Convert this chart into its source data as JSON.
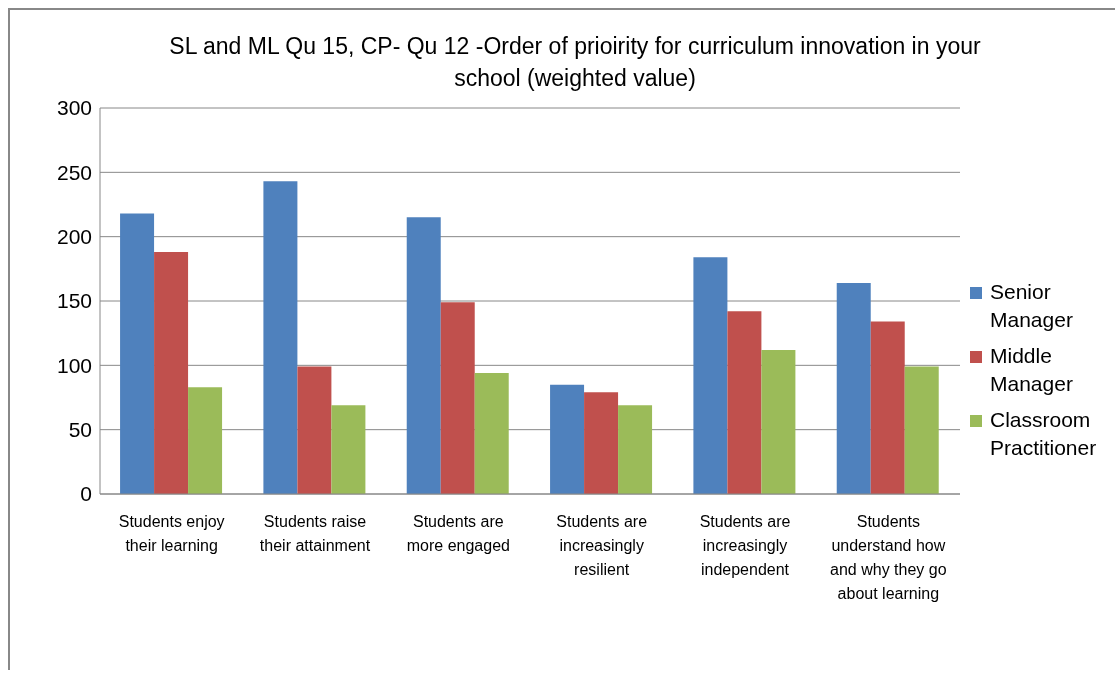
{
  "chart_data": {
    "type": "bar",
    "title": "SL and ML Qu 15, CP- Qu 12 -Order of prioirity for curriculum innovation in your school (weighted value)",
    "categories": [
      "Students enjoy their learning",
      "Students raise their attainment",
      "Students are more engaged",
      "Students are increasingly resilient",
      "Students are increasingly independent",
      "Students understand how and why they go about learning"
    ],
    "series": [
      {
        "name": "Senior Manager",
        "color": "#4f81bd",
        "values": [
          218,
          243,
          215,
          85,
          184,
          164
        ]
      },
      {
        "name": "Middle Manager",
        "color": "#c0504d",
        "values": [
          188,
          99,
          149,
          79,
          142,
          134
        ]
      },
      {
        "name": "Classroom Practitioner",
        "color": "#9bbb59",
        "values": [
          83,
          69,
          94,
          69,
          112,
          99
        ]
      }
    ],
    "ylim": [
      0,
      300
    ],
    "yticks": [
      0,
      50,
      100,
      150,
      200,
      250,
      300
    ],
    "grid": "y",
    "legend": "right"
  }
}
